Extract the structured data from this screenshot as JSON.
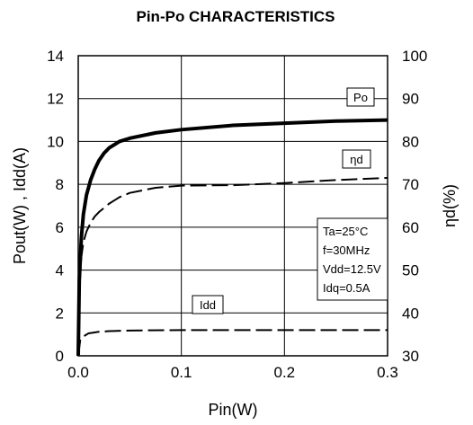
{
  "chart_data": {
    "type": "line",
    "title": "Pin-Po CHARACTERISTICS",
    "xlabel": "Pin(W)",
    "ylabel": "Pout(W) , Idd(A)",
    "y2label": "ηd(%)",
    "xlim": [
      0,
      0.3
    ],
    "ylim": [
      0,
      14
    ],
    "y2lim": [
      30,
      100
    ],
    "x_ticks": [
      "0.0",
      "0.1",
      "0.2",
      "0.3"
    ],
    "y_ticks": [
      "0",
      "2",
      "4",
      "6",
      "8",
      "10",
      "12",
      "14"
    ],
    "y2_ticks": [
      "30",
      "40",
      "50",
      "60",
      "70",
      "80",
      "90",
      "100"
    ],
    "grid": true,
    "series": [
      {
        "name": "Po",
        "axis": "left",
        "style": "solid-thick",
        "x": [
          0,
          0.001,
          0.003,
          0.005,
          0.008,
          0.012,
          0.016,
          0.02,
          0.025,
          0.03,
          0.04,
          0.05,
          0.075,
          0.1,
          0.15,
          0.2,
          0.25,
          0.3
        ],
        "y": [
          0,
          3.5,
          5.5,
          6.6,
          7.5,
          8.2,
          8.7,
          9.1,
          9.45,
          9.7,
          10.0,
          10.15,
          10.4,
          10.55,
          10.75,
          10.85,
          10.95,
          11.0
        ]
      },
      {
        "name": "ηd",
        "axis": "right",
        "style": "dashed",
        "x": [
          0,
          0.001,
          0.003,
          0.005,
          0.008,
          0.012,
          0.016,
          0.02,
          0.03,
          0.04,
          0.05,
          0.075,
          0.1,
          0.15,
          0.2,
          0.25,
          0.3
        ],
        "y": [
          32,
          45,
          53,
          56.5,
          59,
          61,
          62.5,
          63.5,
          65.5,
          67,
          68,
          69.2,
          69.7,
          69.8,
          70.3,
          71,
          71.5
        ]
      },
      {
        "name": "Idd",
        "axis": "left",
        "style": "dashed",
        "x": [
          0,
          0.002,
          0.005,
          0.01,
          0.02,
          0.03,
          0.05,
          0.1,
          0.2,
          0.3
        ],
        "y": [
          0,
          0.75,
          0.9,
          1.05,
          1.12,
          1.15,
          1.18,
          1.2,
          1.2,
          1.2
        ]
      }
    ],
    "annotation_lines": [
      "Ta=25°C",
      "f=30MHz",
      "Vdd=12.5V",
      "Idq=0.5A"
    ]
  }
}
